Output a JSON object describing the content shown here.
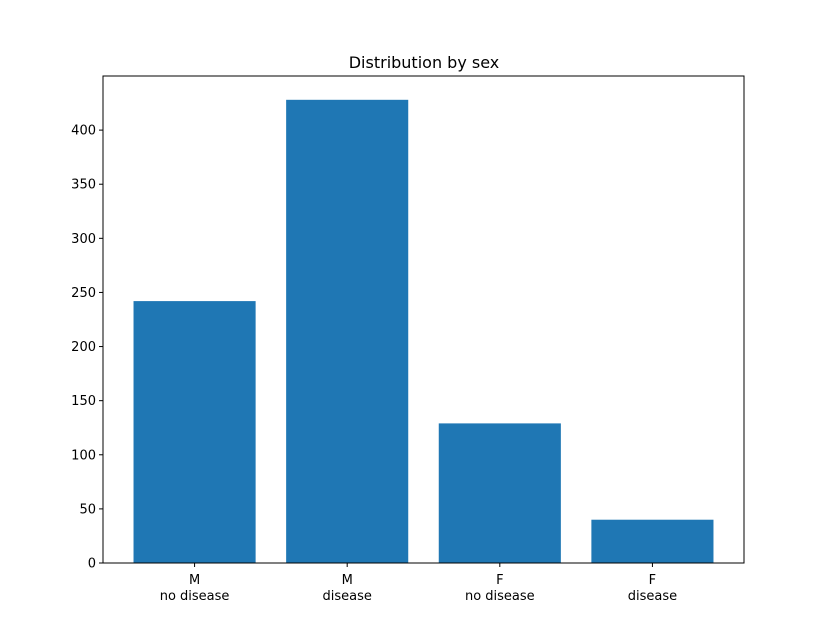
{
  "chart_data": {
    "type": "bar",
    "title": "Distribution by sex",
    "xlabel": "",
    "ylabel": "",
    "categories": [
      {
        "line1": "M",
        "line2": "no disease"
      },
      {
        "line1": "M",
        "line2": "disease"
      },
      {
        "line1": "F",
        "line2": "no disease"
      },
      {
        "line1": "F",
        "line2": "disease"
      }
    ],
    "values": [
      242,
      428,
      129,
      40
    ],
    "ylim": [
      0,
      450
    ],
    "yticks": [
      0,
      50,
      100,
      150,
      200,
      250,
      300,
      350,
      400
    ],
    "bar_color": "#1f77b4",
    "grid": false,
    "legend": "none"
  }
}
